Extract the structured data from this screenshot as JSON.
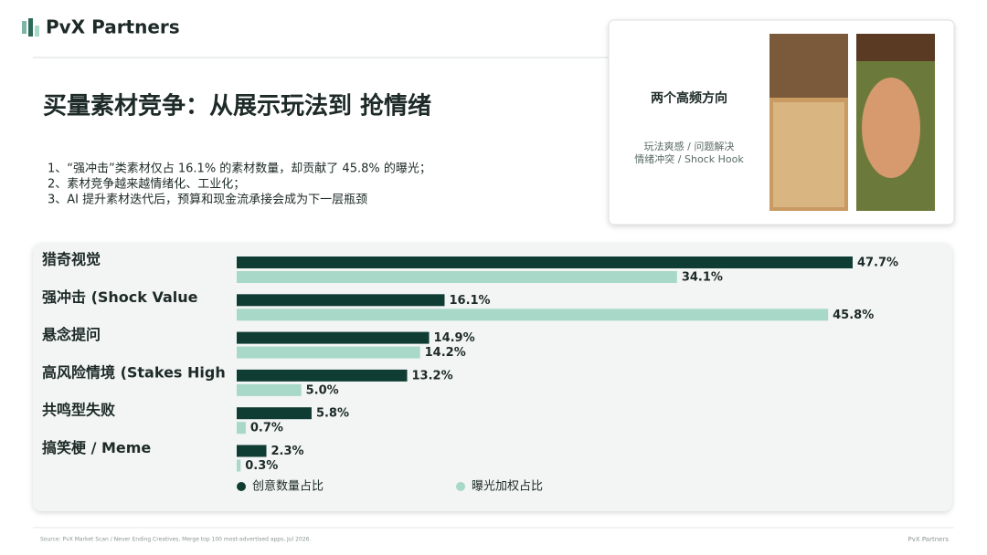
{
  "header": {
    "brand": "PvX Partners"
  },
  "title": "买量素材竞争：从展示玩法到 抢情绪",
  "bullets": [
    "1、“强冲击”类素材仅占 16.1% 的素材数量，却贡献了 45.8% 的曝光；",
    "2、素材竞争越来越情绪化、工业化；",
    "3、AI 提升素材迭代后，预算和现金流承接会成为下一层瓶颈"
  ],
  "card": {
    "title": "两个高频方向",
    "lines": [
      "玩法爽感 / 问题解决",
      "情绪冲突 / Shock Hook"
    ]
  },
  "chart_data": {
    "type": "bar",
    "orientation": "horizontal",
    "categories": [
      "猎奇视觉",
      "强冲击 (Shock Value",
      "悬念提问",
      "高风险情境 (Stakes High",
      "共鸣型失败",
      "搞笑梗 / Meme"
    ],
    "series": [
      {
        "name": "创意数量占比",
        "color": "#0f3d33",
        "values": [
          47.7,
          16.1,
          14.9,
          13.2,
          5.8,
          2.3
        ],
        "value_labels": [
          "47.7%",
          "16.1%",
          "14.9%",
          "13.2%",
          "5.8%",
          "2.3%"
        ]
      },
      {
        "name": "曝光加权占比",
        "color": "#a8d8c8",
        "values": [
          34.1,
          45.8,
          14.2,
          5.0,
          0.7,
          0.3
        ],
        "value_labels": [
          "34.1%",
          "45.8%",
          "14.2%",
          "5.0%",
          "0.7%",
          "0.3%"
        ]
      }
    ],
    "xlim": [
      0,
      54
    ]
  },
  "footer": {
    "source": "Source: PvX Market Scan / Never Ending Creatives, Merge top 100 most-advertised apps, Jul 2026.",
    "brand": "PvX Partners"
  }
}
